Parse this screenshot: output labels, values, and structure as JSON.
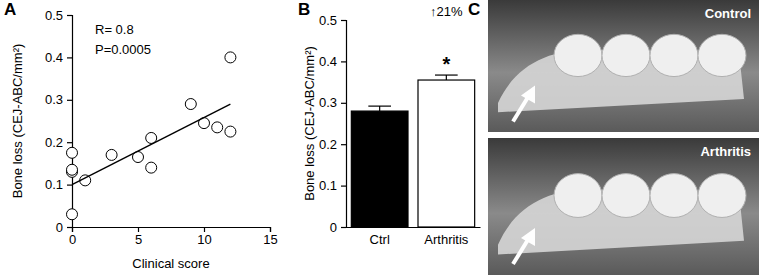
{
  "chart_data": [
    {
      "type": "scatter",
      "panel_label": "A",
      "x_label": "Clinical score",
      "y_label": "Bone loss (CEJ-ABC/mm²)",
      "annotations": [
        "R= 0.8",
        "P=0.0005"
      ],
      "xlim": [
        0,
        15
      ],
      "xticks": [
        0,
        5,
        10,
        15
      ],
      "ylim": [
        0,
        0.5
      ],
      "yticks": [
        0,
        0.1,
        0.2,
        0.3,
        0.4,
        0.5
      ],
      "series": [
        {
          "type": "scatter",
          "marker": "circle",
          "color": "#000000",
          "x": [
            0,
            0,
            0,
            0,
            1,
            3,
            5,
            6,
            6,
            9,
            10,
            11,
            12,
            12
          ],
          "values": [
            0.03,
            0.13,
            0.135,
            0.175,
            0.11,
            0.17,
            0.165,
            0.21,
            0.14,
            0.29,
            0.245,
            0.235,
            0.225,
            0.4
          ]
        },
        {
          "type": "line",
          "line_style": "solid",
          "color": "#000000",
          "x": [
            0,
            12
          ],
          "values": [
            0.1,
            0.29
          ]
        }
      ]
    },
    {
      "type": "bar",
      "panel_label": "B",
      "y_label": "Bone loss (CEJ-ABC/mm²)",
      "annotations": [
        "↑21%",
        "*"
      ],
      "categories": [
        "Ctrl",
        "Arthritis"
      ],
      "values": [
        0.28,
        0.355
      ],
      "errors": [
        0.012,
        0.012
      ],
      "colors": [
        "#000000",
        "#ffffff"
      ],
      "ylim": [
        0,
        0.5
      ],
      "yticks": [
        0,
        0.1,
        0.2,
        0.3,
        0.4,
        0.5
      ]
    }
  ],
  "photo_panel": {
    "panel_label": "C",
    "images": [
      {
        "caption": "Control"
      },
      {
        "caption": "Arthritis"
      }
    ]
  }
}
